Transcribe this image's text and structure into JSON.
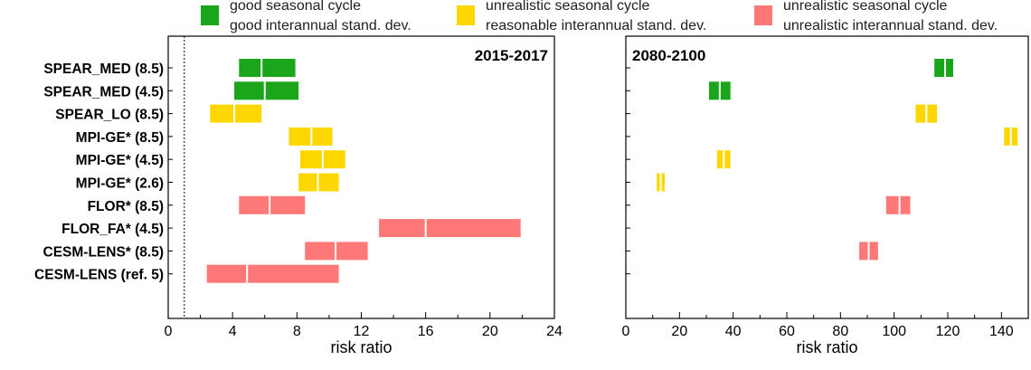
{
  "legend": [
    {
      "line1": "good seasonal cycle",
      "line2": "good interannual stand. dev.",
      "color": "#1aa51a"
    },
    {
      "line1": "unrealistic seasonal cycle",
      "line2": "reasonable interannual stand. dev.",
      "color": "#ffd700"
    },
    {
      "line1": "unrealistic seasonal cycle",
      "line2": "unrealistic interannual stand. dev.",
      "color": "#ff7878"
    }
  ],
  "chart_data": [
    {
      "type": "bar",
      "panel_title": "2015-2017",
      "xlabel": "risk ratio",
      "xlim": [
        0,
        24
      ],
      "xticks": [
        "0",
        "4",
        "8",
        "12",
        "16",
        "20",
        "24"
      ],
      "reference_line_x": 1,
      "categories": [
        "SPEAR_MED (8.5)",
        "SPEAR_MED (4.5)",
        "SPEAR_LO (8.5)",
        "MPI-GE* (8.5)",
        "MPI-GE* (4.5)",
        "MPI-GE* (2.6)",
        "FLOR* (8.5)",
        "FLOR_FA* (4.5)",
        "CESM-LENS* (8.5)",
        "CESM-LENS (ref. 5)"
      ],
      "ranges": [
        {
          "low": 4.4,
          "best": 5.8,
          "high": 7.9,
          "quality": "good"
        },
        {
          "low": 4.1,
          "best": 6.0,
          "high": 8.1,
          "quality": "good"
        },
        {
          "low": 2.6,
          "best": 4.1,
          "high": 5.8,
          "quality": "reasonable_std"
        },
        {
          "low": 7.5,
          "best": 8.9,
          "high": 10.2,
          "quality": "reasonable_std"
        },
        {
          "low": 8.2,
          "best": 9.6,
          "high": 11.0,
          "quality": "reasonable_std"
        },
        {
          "low": 8.1,
          "best": 9.3,
          "high": 10.6,
          "quality": "reasonable_std"
        },
        {
          "low": 4.4,
          "best": 6.3,
          "high": 8.5,
          "quality": "unrealistic"
        },
        {
          "low": 13.1,
          "best": 16.0,
          "high": 21.9,
          "quality": "unrealistic"
        },
        {
          "low": 8.5,
          "best": 10.4,
          "high": 12.4,
          "quality": "unrealistic"
        },
        {
          "low": 2.4,
          "best": 4.9,
          "high": 10.6,
          "quality": "unrealistic"
        }
      ]
    },
    {
      "type": "bar",
      "panel_title": "2080-2100",
      "xlabel": "risk ratio",
      "xlim": [
        0,
        150
      ],
      "xticks": [
        "0",
        "20",
        "40",
        "60",
        "80",
        "100",
        "120",
        "140"
      ],
      "categories": [
        "SPEAR_MED (8.5)",
        "SPEAR_MED (4.5)",
        "SPEAR_LO (8.5)",
        "MPI-GE* (8.5)",
        "MPI-GE* (4.5)",
        "MPI-GE* (2.6)",
        "FLOR* (8.5)",
        "FLOR_FA* (4.5)",
        "CESM-LENS* (8.5)",
        "CESM-LENS (ref. 5)"
      ],
      "ranges": [
        {
          "low": 115,
          "best": 119,
          "high": 122,
          "quality": "good"
        },
        {
          "low": 31,
          "best": 35,
          "high": 39,
          "quality": "good"
        },
        {
          "low": 108,
          "best": 112,
          "high": 116,
          "quality": "reasonable_std"
        },
        {
          "low": 141,
          "best": 143.5,
          "high": 146,
          "quality": "reasonable_std"
        },
        {
          "low": 34,
          "best": 36.5,
          "high": 39,
          "quality": "reasonable_std"
        },
        {
          "low": 11.5,
          "best": 13,
          "high": 14.5,
          "quality": "reasonable_std"
        },
        {
          "low": 97,
          "best": 102,
          "high": 106,
          "quality": "unrealistic"
        },
        null,
        {
          "low": 87,
          "best": 90.5,
          "high": 94,
          "quality": "unrealistic"
        },
        null
      ]
    }
  ],
  "colors": {
    "good": "#1aa51a",
    "reasonable_std": "#ffd700",
    "unrealistic": "#ff7878"
  }
}
